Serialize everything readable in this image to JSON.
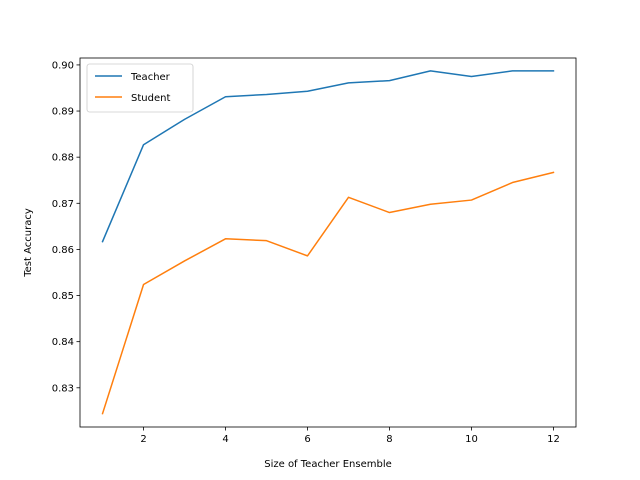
{
  "chart_data": {
    "type": "line",
    "title": "",
    "xlabel": "Size of Teacher Ensemble",
    "ylabel": "Test Accuracy",
    "xlim": [
      0.45,
      12.55
    ],
    "ylim": [
      0.8215,
      0.9015
    ],
    "xticks": [
      2,
      4,
      6,
      8,
      10,
      12
    ],
    "yticks": [
      0.83,
      0.84,
      0.85,
      0.86,
      0.87,
      0.88,
      0.89,
      0.9
    ],
    "xtick_labels": [
      "2",
      "4",
      "6",
      "8",
      "10",
      "12"
    ],
    "ytick_labels": [
      "0.83",
      "0.84",
      "0.85",
      "0.86",
      "0.87",
      "0.88",
      "0.89",
      "0.90"
    ],
    "grid": false,
    "legend_position": "top-left",
    "x": [
      1,
      2,
      3,
      4,
      5,
      6,
      7,
      8,
      9,
      10,
      11,
      12
    ],
    "series": [
      {
        "name": "Teacher",
        "color": "#1f77b4",
        "values": [
          0.8617,
          0.8827,
          0.8882,
          0.8931,
          0.8936,
          0.8943,
          0.8961,
          0.8966,
          0.8987,
          0.8975,
          0.8987,
          0.8987
        ]
      },
      {
        "name": "Student",
        "color": "#ff7f0e",
        "values": [
          0.8244,
          0.8524,
          0.8575,
          0.8623,
          0.8619,
          0.8586,
          0.8713,
          0.868,
          0.8698,
          0.8707,
          0.8745,
          0.8767
        ]
      }
    ]
  }
}
